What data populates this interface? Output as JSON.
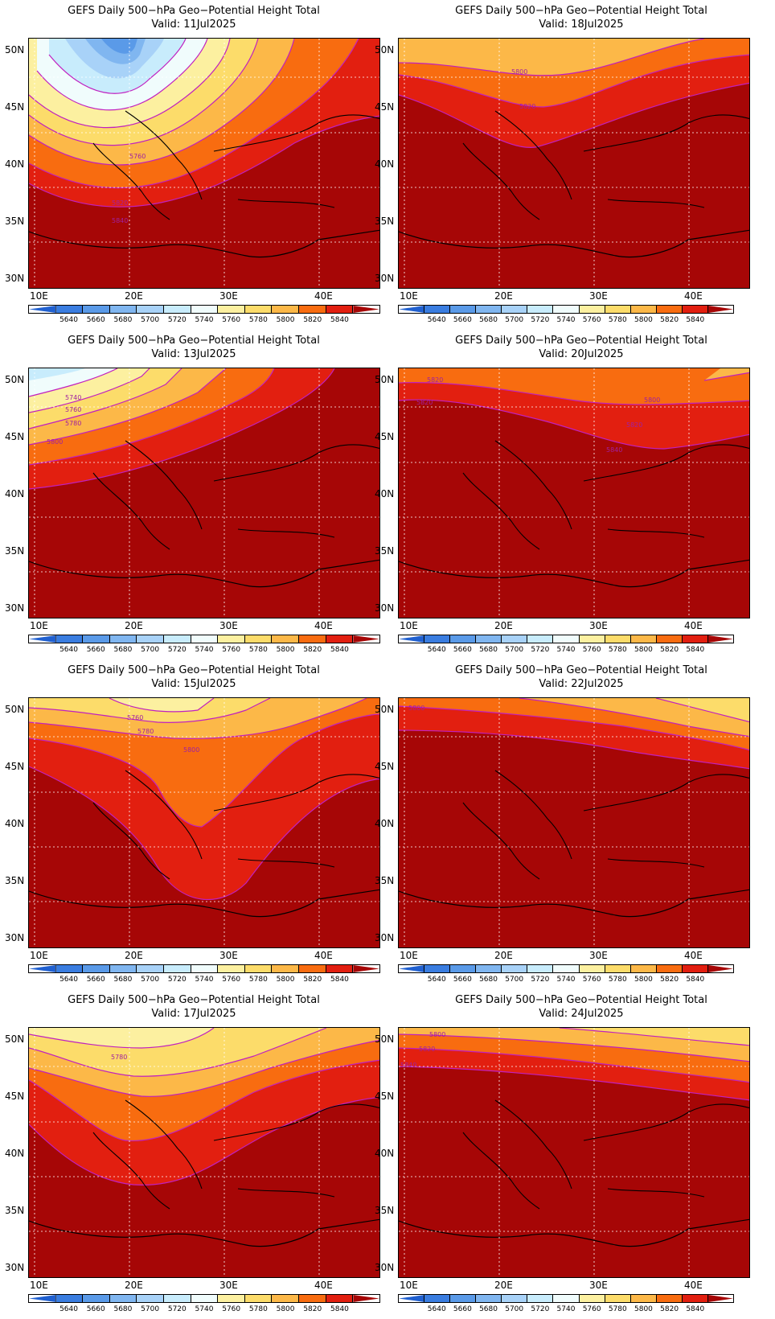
{
  "figure": {
    "panel_title": "GEFS Daily 500−hPa Geo−Potential Height Total",
    "x_axis_ticks": [
      "10E",
      "20E",
      "30E",
      "40E"
    ],
    "y_axis_ticks": [
      "50N",
      "45N",
      "40N",
      "35N",
      "30N"
    ],
    "colorbar": {
      "colors": [
        "#2060d0",
        "#3a7de0",
        "#5a9ae8",
        "#80b6f0",
        "#a8d2f8",
        "#c8ecfc",
        "#f0fcfc",
        "#fcf0a0",
        "#fcdc6a",
        "#fcb848",
        "#f86c10",
        "#e21f10",
        "#a60606"
      ],
      "labels": [
        "5640",
        "5660",
        "5680",
        "5700",
        "5720",
        "5740",
        "5760",
        "5780",
        "5800",
        "5820",
        "5840"
      ]
    }
  },
  "panels": [
    {
      "id": "p1",
      "valid": "Valid:  11Jul2025",
      "contour_labels": [
        "5760",
        "5820",
        "5840"
      ]
    },
    {
      "id": "p2",
      "valid": "Valid:  18Jul2025",
      "contour_labels": [
        "5800",
        "5820"
      ]
    },
    {
      "id": "p3",
      "valid": "Valid:  13Jul2025",
      "contour_labels": [
        "5740",
        "5760",
        "5780",
        "5800"
      ]
    },
    {
      "id": "p4",
      "valid": "Valid:  20Jul2025",
      "contour_labels": [
        "5820",
        "5820",
        "5800",
        "5820",
        "5840"
      ]
    },
    {
      "id": "p5",
      "valid": "Valid:  15Jul2025",
      "contour_labels": [
        "5760",
        "5780",
        "5800"
      ]
    },
    {
      "id": "p6",
      "valid": "Valid:  22Jul2025",
      "contour_labels": [
        "5800"
      ]
    },
    {
      "id": "p7",
      "valid": "Valid:  17Jul2025",
      "contour_labels": [
        "5780"
      ]
    },
    {
      "id": "p8",
      "valid": "Valid:  24Jul2025",
      "contour_labels": [
        "5800",
        "5820",
        "5840"
      ]
    }
  ]
}
